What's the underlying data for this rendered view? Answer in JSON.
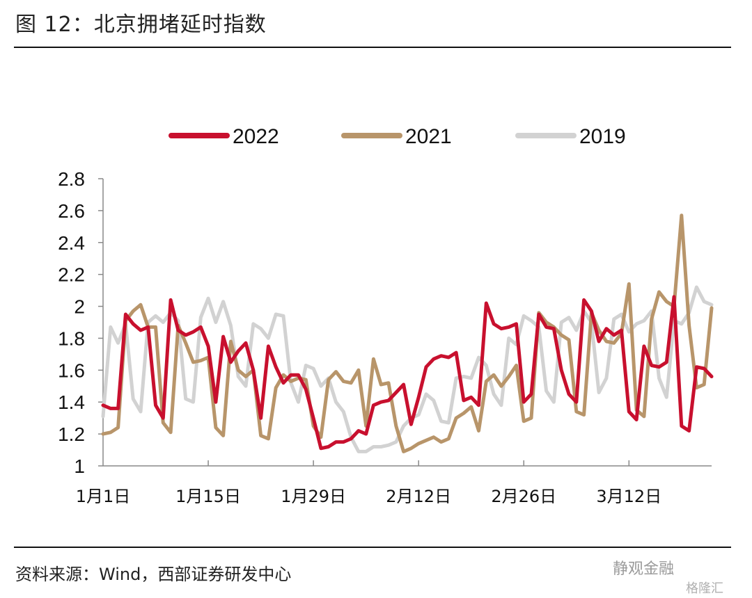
{
  "header": {
    "title": "图 12：北京拥堵延时指数"
  },
  "footer": {
    "source": "资料来源：Wind，西部证券研发中心"
  },
  "watermark": {
    "text": "静观金融",
    "text2": "格隆汇"
  },
  "colors": {
    "s2022": "#c8102e",
    "s2021": "#b8956a",
    "s2019": "#d2d2d2"
  },
  "chart_data": {
    "type": "line",
    "ylim": [
      1,
      2.8
    ],
    "yticks": [
      "2.8",
      "2.6",
      "2.4",
      "2.2",
      "2",
      "1.8",
      "1.6",
      "1.4",
      "1.2",
      "1"
    ],
    "yticks_values": [
      2.8,
      2.6,
      2.4,
      2.2,
      2.0,
      1.8,
      1.6,
      1.4,
      1.2,
      1.0
    ],
    "x_domain": [
      0,
      81
    ],
    "xticks": [
      {
        "label": "1月1日",
        "day": 0
      },
      {
        "label": "1月15日",
        "day": 14
      },
      {
        "label": "1月29日",
        "day": 28
      },
      {
        "label": "2月12日",
        "day": 42
      },
      {
        "label": "2月26日",
        "day": 56
      },
      {
        "label": "3月12日",
        "day": 70
      }
    ],
    "legend": {
      "position": "top"
    },
    "series": [
      {
        "name": "2022",
        "color": "#c8102e",
        "values": [
          1.38,
          1.36,
          1.36,
          1.95,
          1.89,
          1.85,
          1.87,
          1.38,
          1.3,
          2.04,
          1.85,
          1.82,
          1.84,
          1.87,
          1.75,
          1.4,
          1.81,
          1.65,
          1.72,
          1.77,
          1.6,
          1.3,
          1.75,
          1.62,
          1.52,
          1.57,
          1.57,
          1.48,
          1.3,
          1.11,
          1.12,
          1.15,
          1.15,
          1.17,
          1.22,
          1.2,
          1.38,
          1.4,
          1.41,
          1.46,
          1.51,
          1.26,
          1.43,
          1.62,
          1.67,
          1.69,
          1.68,
          1.71,
          1.41,
          1.43,
          1.38,
          2.02,
          1.89,
          1.86,
          1.87,
          1.89,
          1.4,
          1.45,
          1.95,
          1.87,
          1.86,
          1.6,
          1.45,
          1.4,
          2.04,
          1.97,
          1.78,
          1.86,
          1.82,
          1.85,
          1.34,
          1.29,
          1.75,
          1.63,
          1.62,
          1.65,
          2.06,
          1.25,
          1.22,
          1.62,
          1.61,
          1.56
        ]
      },
      {
        "name": "2021",
        "color": "#b8956a",
        "values": [
          1.2,
          1.21,
          1.24,
          1.91,
          1.97,
          2.01,
          1.87,
          1.87,
          1.27,
          1.21,
          1.88,
          1.77,
          1.65,
          1.66,
          1.68,
          1.24,
          1.19,
          1.78,
          1.6,
          1.56,
          1.6,
          1.19,
          1.17,
          1.49,
          1.57,
          1.53,
          1.55,
          1.54,
          1.25,
          1.18,
          1.54,
          1.59,
          1.53,
          1.52,
          1.6,
          1.25,
          1.67,
          1.51,
          1.52,
          1.25,
          1.09,
          1.11,
          1.14,
          1.16,
          1.18,
          1.15,
          1.17,
          1.3,
          1.33,
          1.37,
          1.22,
          1.53,
          1.57,
          1.5,
          1.56,
          1.63,
          1.28,
          1.3,
          1.96,
          1.9,
          1.87,
          1.82,
          1.79,
          1.34,
          1.32,
          1.96,
          1.85,
          1.78,
          1.77,
          1.83,
          2.14,
          1.35,
          1.31,
          1.92,
          2.09,
          2.03,
          2.0,
          2.57,
          1.88,
          1.49,
          1.51,
          1.99
        ]
      },
      {
        "name": "2019",
        "color": "#d2d2d2",
        "values": [
          1.31,
          1.87,
          1.77,
          1.89,
          1.42,
          1.34,
          1.9,
          1.94,
          1.9,
          1.96,
          1.91,
          1.42,
          1.4,
          1.93,
          2.05,
          1.9,
          2.03,
          1.88,
          1.56,
          1.5,
          1.89,
          1.86,
          1.8,
          1.95,
          1.94,
          1.52,
          1.4,
          1.63,
          1.61,
          1.5,
          1.55,
          1.4,
          1.34,
          1.18,
          1.09,
          1.09,
          1.12,
          1.12,
          1.13,
          1.15,
          1.25,
          1.3,
          1.32,
          1.45,
          1.41,
          1.28,
          1.27,
          1.55,
          1.56,
          1.55,
          1.68,
          1.63,
          1.45,
          1.38,
          1.8,
          1.76,
          1.94,
          1.91,
          1.87,
          1.47,
          1.4,
          1.9,
          1.93,
          1.85,
          1.97,
          1.9,
          1.46,
          1.55,
          1.92,
          1.95,
          1.84,
          1.89,
          1.91,
          1.97,
          1.55,
          1.43,
          1.91,
          1.89,
          1.96,
          2.12,
          2.03,
          2.01
        ]
      }
    ]
  }
}
